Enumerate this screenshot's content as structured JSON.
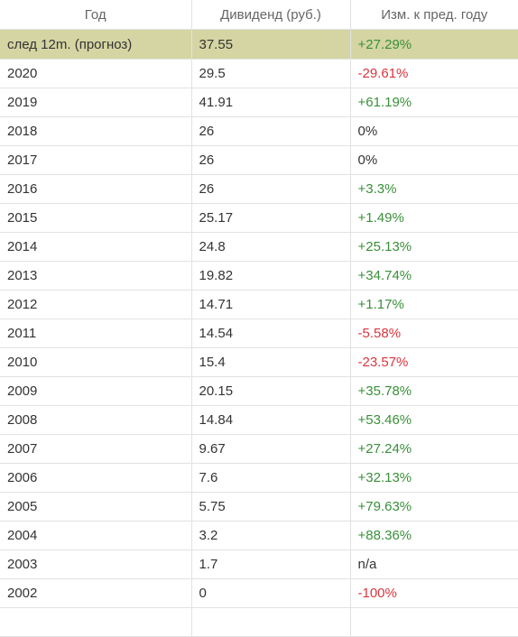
{
  "header": {
    "year": "Год",
    "dividend": "Дивиденд (руб.)",
    "change": "Изм. к пред. году"
  },
  "colors": {
    "positive": "#3a8f3a",
    "negative": "#d9363e",
    "neutral": "#333333",
    "forecast_bg": "#d4d5a2"
  },
  "rows": [
    {
      "year": "след 12m. (прогноз)",
      "dividend": "37.55",
      "change": "+27.29%",
      "trend": "pos",
      "forecast": true
    },
    {
      "year": "2020",
      "dividend": "29.5",
      "change": "-29.61%",
      "trend": "neg"
    },
    {
      "year": "2019",
      "dividend": "41.91",
      "change": "+61.19%",
      "trend": "pos"
    },
    {
      "year": "2018",
      "dividend": "26",
      "change": "0%",
      "trend": "neu"
    },
    {
      "year": "2017",
      "dividend": "26",
      "change": "0%",
      "trend": "neu"
    },
    {
      "year": "2016",
      "dividend": "26",
      "change": "+3.3%",
      "trend": "pos"
    },
    {
      "year": "2015",
      "dividend": "25.17",
      "change": "+1.49%",
      "trend": "pos"
    },
    {
      "year": "2014",
      "dividend": "24.8",
      "change": "+25.13%",
      "trend": "pos"
    },
    {
      "year": "2013",
      "dividend": "19.82",
      "change": "+34.74%",
      "trend": "pos"
    },
    {
      "year": "2012",
      "dividend": "14.71",
      "change": "+1.17%",
      "trend": "pos"
    },
    {
      "year": "2011",
      "dividend": "14.54",
      "change": "-5.58%",
      "trend": "neg"
    },
    {
      "year": "2010",
      "dividend": "15.4",
      "change": "-23.57%",
      "trend": "neg"
    },
    {
      "year": "2009",
      "dividend": "20.15",
      "change": "+35.78%",
      "trend": "pos"
    },
    {
      "year": "2008",
      "dividend": "14.84",
      "change": "+53.46%",
      "trend": "pos"
    },
    {
      "year": "2007",
      "dividend": "9.67",
      "change": "+27.24%",
      "trend": "pos"
    },
    {
      "year": "2006",
      "dividend": "7.6",
      "change": "+32.13%",
      "trend": "pos"
    },
    {
      "year": "2005",
      "dividend": "5.75",
      "change": "+79.63%",
      "trend": "pos"
    },
    {
      "year": "2004",
      "dividend": "3.2",
      "change": "+88.36%",
      "trend": "pos"
    },
    {
      "year": "2003",
      "dividend": "1.7",
      "change": "n/a",
      "trend": "neu"
    },
    {
      "year": "2002",
      "dividend": "0",
      "change": "-100%",
      "trend": "neg"
    },
    {
      "year": "",
      "dividend": "",
      "change": "",
      "trend": "neu"
    }
  ]
}
